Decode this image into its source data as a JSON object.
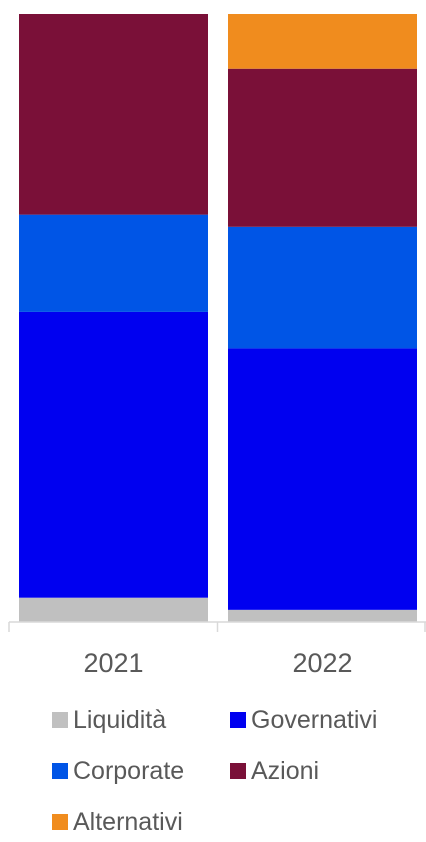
{
  "chart_data": {
    "type": "bar",
    "stacked": true,
    "normalized": true,
    "categories": [
      "2021",
      "2022"
    ],
    "series": [
      {
        "name": "Liquidità",
        "color": "#c0c0c0",
        "values": [
          4,
          2
        ]
      },
      {
        "name": "Governativi",
        "color": "#0000f0",
        "values": [
          47,
          43
        ]
      },
      {
        "name": "Corporate",
        "color": "#0055e6",
        "values": [
          16,
          20
        ]
      },
      {
        "name": "Azioni",
        "color": "#7a1038",
        "values": [
          33,
          26
        ]
      },
      {
        "name": "Alternativi",
        "color": "#f08c1e",
        "values": [
          0,
          9
        ]
      }
    ],
    "ylim": [
      0,
      100
    ],
    "grid": false,
    "legend_position": "bottom"
  }
}
